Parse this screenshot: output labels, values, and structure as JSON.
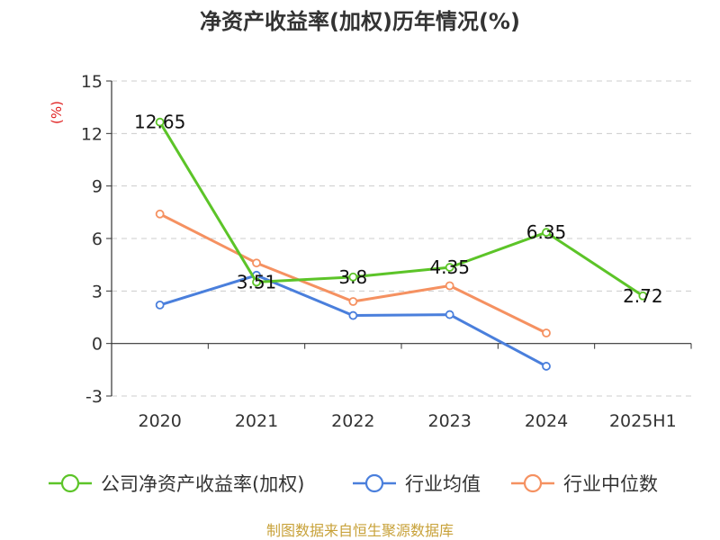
{
  "chart_data": {
    "type": "line",
    "title": "净资产收益率(加权)历年情况(%)",
    "unit_label": "(%)",
    "categories": [
      "2020",
      "2021",
      "2022",
      "2023",
      "2024",
      "2025H1"
    ],
    "yticks": [
      "15",
      "12",
      "9",
      "6",
      "3",
      "0",
      "-3"
    ],
    "ylim": [
      -3,
      15
    ],
    "grid": true,
    "legend_position": "bottom",
    "series": [
      {
        "name": "公司净资产收益率(加权)",
        "color": "#5cc428",
        "values": [
          12.65,
          3.51,
          3.8,
          4.35,
          6.35,
          2.72
        ],
        "labels": [
          "12.65",
          "3.51",
          "3.8",
          "4.35",
          "6.35",
          "2.72"
        ]
      },
      {
        "name": "行业均值",
        "color": "#4a7fdc",
        "values": [
          2.2,
          3.9,
          1.6,
          1.65,
          -1.3,
          null
        ]
      },
      {
        "name": "行业中位数",
        "color": "#f59161",
        "values": [
          7.4,
          4.6,
          2.4,
          3.3,
          0.6,
          null
        ]
      }
    ]
  },
  "source": "制图数据来自恒生聚源数据库"
}
